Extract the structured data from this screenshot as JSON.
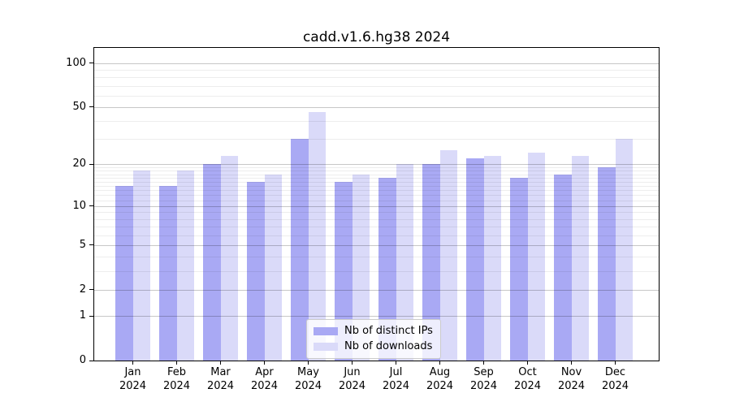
{
  "title": "cadd.v1.6.hg38 2024",
  "legend": {
    "position": "lower center",
    "items": [
      {
        "label": "Nb of distinct IPs",
        "color": "#a9a9f4"
      },
      {
        "label": "Nb of downloads",
        "color": "#dadaf9"
      }
    ]
  },
  "chart_data": {
    "type": "bar",
    "title": "cadd.v1.6.hg38 2024",
    "categories": [
      "Jan 2024",
      "Feb 2024",
      "Mar 2024",
      "Apr 2024",
      "May 2024",
      "Jun 2024",
      "Jul 2024",
      "Aug 2024",
      "Sep 2024",
      "Oct 2024",
      "Nov 2024",
      "Dec 2024"
    ],
    "series": [
      {
        "name": "Nb of distinct IPs",
        "color": "#a9a9f4",
        "values": [
          14,
          14,
          20,
          15,
          30,
          15,
          16,
          20,
          22,
          16,
          17,
          19
        ]
      },
      {
        "name": "Nb of downloads",
        "color": "#dadaf9",
        "values": [
          18,
          18,
          23,
          17,
          46,
          17,
          20,
          25,
          23,
          24,
          23,
          30
        ]
      }
    ],
    "xlabel": "",
    "ylabel": "",
    "yscale": "log1p",
    "y_ticks": [
      100,
      50,
      20,
      10,
      5,
      2,
      1,
      0
    ],
    "y_minor_ticks": [
      3,
      4,
      6,
      7,
      8,
      9,
      11,
      12,
      13,
      14,
      15,
      16,
      17,
      18,
      19,
      30,
      40,
      60,
      70,
      80,
      90
    ],
    "ylim": [
      0,
      130
    ],
    "grid": "both",
    "legend_position": "lower center"
  }
}
